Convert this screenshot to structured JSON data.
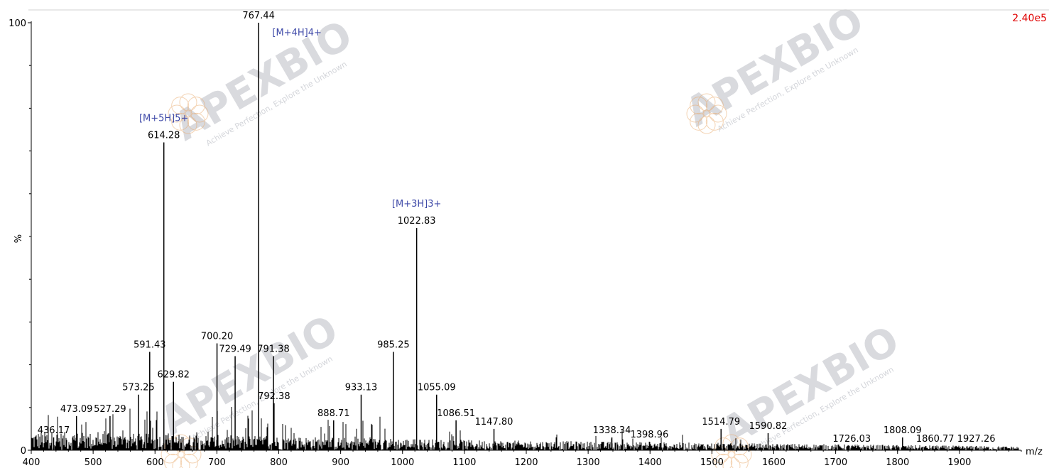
{
  "watermark": {
    "brand": "APEXBIO",
    "slogan": "Achieve Perfection, Explore the Unknown"
  },
  "chart_data": {
    "type": "bar",
    "subtype": "mass-spectrum",
    "title": "",
    "xlabel": "m/z",
    "ylabel": "%",
    "max_intensity_label": "2.40e5",
    "xlim": [
      400,
      2000
    ],
    "ylim": [
      0,
      100
    ],
    "x_ticks": [
      400,
      500,
      600,
      700,
      800,
      900,
      1000,
      1100,
      1200,
      1300,
      1400,
      1500,
      1600,
      1700,
      1800,
      1900
    ],
    "y_ticks": [
      "0",
      "100"
    ],
    "grid": false,
    "noise_floor": 2,
    "peaks": [
      {
        "mz": 436.17,
        "label": "436.17",
        "intensity": 3
      },
      {
        "mz": 473.09,
        "label": "473.09",
        "intensity": 8
      },
      {
        "mz": 527.29,
        "label": "527.29",
        "intensity": 8
      },
      {
        "mz": 573.25,
        "label": "573.25",
        "intensity": 13
      },
      {
        "mz": 591.43,
        "label": "591.43",
        "intensity": 23
      },
      {
        "mz": 614.28,
        "label": "614.28",
        "intensity": 72
      },
      {
        "mz": 629.82,
        "label": "629.82",
        "intensity": 16
      },
      {
        "mz": 700.2,
        "label": "700.20",
        "intensity": 25
      },
      {
        "mz": 729.49,
        "label": "729.49",
        "intensity": 22
      },
      {
        "mz": 767.44,
        "label": "767.44",
        "intensity": 100
      },
      {
        "mz": 791.38,
        "label": "791.38",
        "intensity": 22
      },
      {
        "mz": 792.38,
        "label": "792.38",
        "intensity": 11
      },
      {
        "mz": 888.71,
        "label": "888.71",
        "intensity": 7
      },
      {
        "mz": 933.13,
        "label": "933.13",
        "intensity": 13
      },
      {
        "mz": 985.25,
        "label": "985.25",
        "intensity": 23
      },
      {
        "mz": 1022.83,
        "label": "1022.83",
        "intensity": 52
      },
      {
        "mz": 1055.09,
        "label": "1055.09",
        "intensity": 13
      },
      {
        "mz": 1086.51,
        "label": "1086.51",
        "intensity": 7
      },
      {
        "mz": 1147.8,
        "label": "1147.80",
        "intensity": 5
      },
      {
        "mz": 1338.34,
        "label": "1338.34",
        "intensity": 3
      },
      {
        "mz": 1398.96,
        "label": "1398.96",
        "intensity": 2
      },
      {
        "mz": 1514.79,
        "label": "1514.79",
        "intensity": 5
      },
      {
        "mz": 1590.82,
        "label": "1590.82",
        "intensity": 4
      },
      {
        "mz": 1726.03,
        "label": "1726.03",
        "intensity": 1
      },
      {
        "mz": 1808.09,
        "label": "1808.09",
        "intensity": 3
      },
      {
        "mz": 1860.77,
        "label": "1860.77",
        "intensity": 1
      },
      {
        "mz": 1927.26,
        "label": "1927.26",
        "intensity": 1
      }
    ],
    "annotations": [
      {
        "text": "[M+5H]5+",
        "mz": 614.28
      },
      {
        "text": "[M+4H]4+",
        "mz": 767.44
      },
      {
        "text": "[M+3H]3+",
        "mz": 1022.83
      }
    ],
    "colors": {
      "peaks": "#000000",
      "annotation": "#3f4aa8",
      "intensity_label": "#e00000",
      "watermark": "#c9cbd1",
      "watermark_x": "#e8a86a"
    }
  }
}
